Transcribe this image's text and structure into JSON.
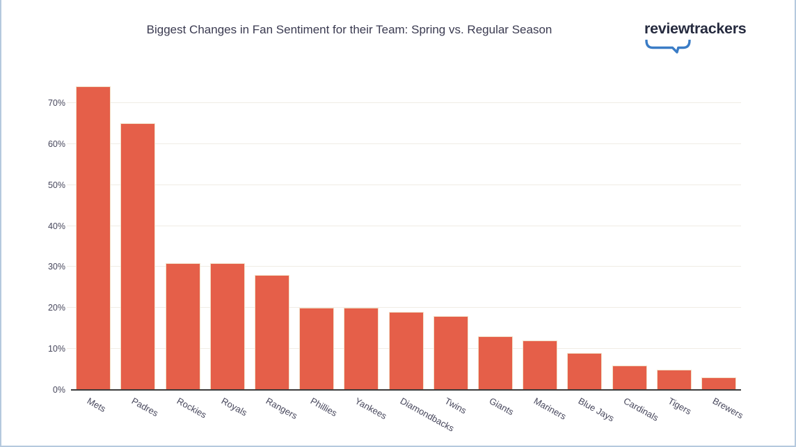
{
  "frame": {
    "border_color": "#b5c9de"
  },
  "header": {
    "logo_text": "reviewtrackers",
    "logo_color": "#262b3f",
    "logo_accent": "#3a7cc6"
  },
  "chart_data": {
    "type": "bar",
    "title": "Biggest Changes in Fan Sentiment for their Team: Spring vs. Regular Season",
    "categories": [
      "Mets",
      "Padres",
      "Rockies",
      "Royals",
      "Rangers",
      "Phillies",
      "Yankees",
      "Diamondbacks",
      "Twins",
      "Giants",
      "Mariners",
      "Blue Jays",
      "Cardinals",
      "Tigers",
      "Brewers"
    ],
    "values": [
      74,
      65,
      31,
      31,
      28,
      20,
      20,
      19,
      18,
      13,
      12,
      9,
      6,
      5,
      3
    ],
    "unit": "%",
    "xlabel": "",
    "ylabel": "",
    "ylim": [
      0,
      78
    ],
    "ytick_step": 10,
    "ytick_labels": [
      "0%",
      "10%",
      "20%",
      "30%",
      "40%",
      "50%",
      "60%",
      "70%"
    ],
    "grid": true,
    "legend": false,
    "bar_color": "#e55f49",
    "bar_border_color": "#f2dfc7",
    "grid_color": "#f0ece5",
    "axis_color": "#3b3b3b",
    "label_color": "#47475c",
    "title_color": "#3a3a50"
  }
}
